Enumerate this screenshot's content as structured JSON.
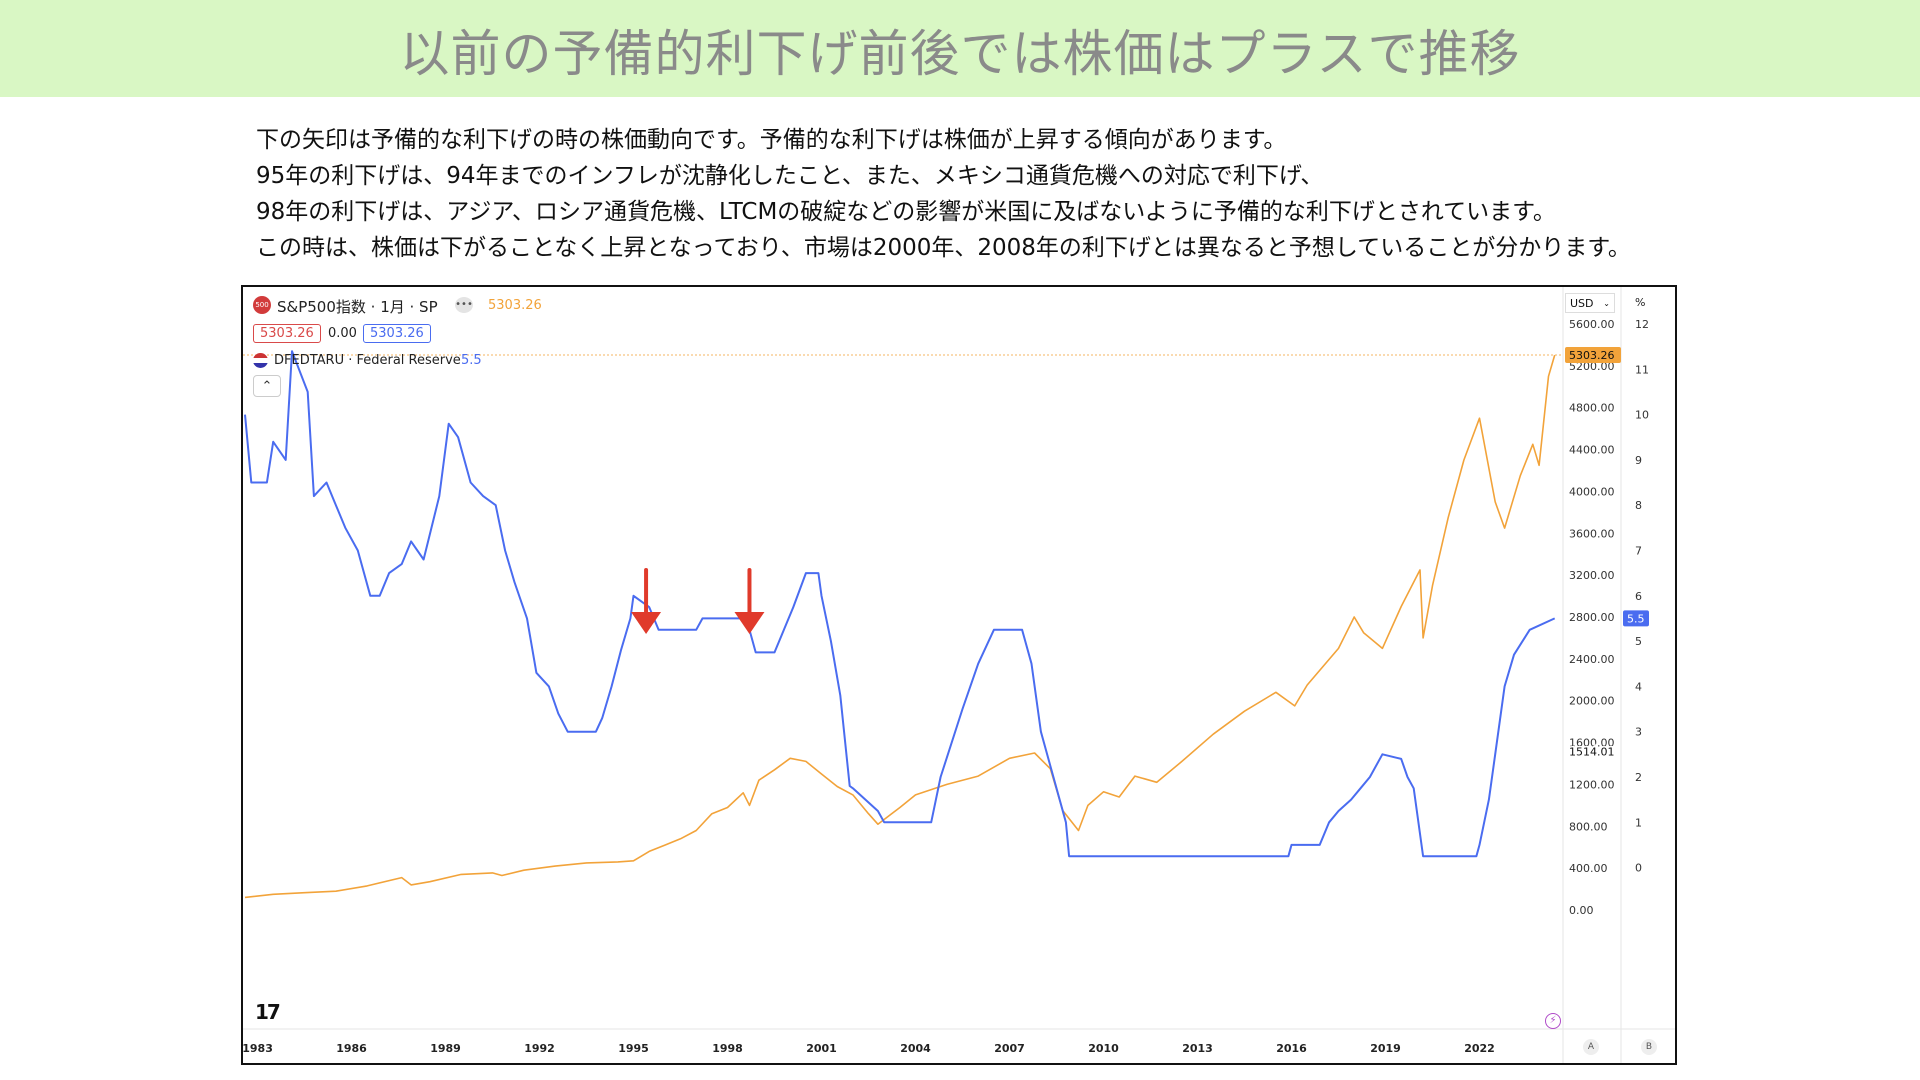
{
  "banner": {
    "title": "以前の予備的利下げ前後では株価はプラスで推移"
  },
  "description": [
    "下の矢印は予備的な利下げの時の株価動向です。予備的な利下げは株価が上昇する傾向があります。",
    "95年の利下げは、94年までのインフレが沈静化したこと、また、メキシコ通貨危機への対応で利下げ、",
    "98年の利下げは、アジア、ロシア通貨危機、LTCMの破綻などの影響が米国に及ばないように予備的な利下げとされています。",
    "この時は、株価は下がることなく上昇となっており、市場は2000年、2008年の利下げとは異なると予想していることが分かります。"
  ],
  "header": {
    "symbol_badge": "500",
    "symbol_title": "S&P500指数 · 1月 · SP",
    "last_value": "5303.26",
    "price_left": "5303.26",
    "change": "0.00",
    "price_right": "5303.26",
    "series2_title": "DFEDTARU · Federal Reserve",
    "series2_value": "5.5",
    "currency": "USD",
    "percent_label": "%",
    "collapse_glyph": "⌃",
    "tv_logo": "17",
    "btn_a": "A",
    "btn_b": "B"
  },
  "colors": {
    "sp500": "#f2a33a",
    "fed": "#4a6cf0",
    "arrow": "#e03a2b",
    "banner": "#d9f7c4"
  },
  "chart_data": {
    "type": "line",
    "title": "S&P500指数 · 1月 · SP",
    "x_ticks": [
      "1983",
      "1986",
      "1989",
      "1992",
      "1995",
      "1998",
      "2001",
      "2004",
      "2007",
      "2010",
      "2013",
      "2016",
      "2019",
      "2022"
    ],
    "left_axis_ticks": [
      "5600.00",
      "5200.00",
      "4800.00",
      "4400.00",
      "4000.00",
      "3600.00",
      "3200.00",
      "2800.00",
      "2400.00",
      "2000.00",
      "1600.00",
      "1200.00",
      "800.00",
      "400.00",
      "0.00"
    ],
    "right_axis_ticks": [
      "12",
      "11",
      "10",
      "9",
      "8",
      "7",
      "6",
      "5",
      "4",
      "3",
      "2",
      "1",
      "0"
    ],
    "xlim": [
      1982.6,
      2024.6
    ],
    "ylim_price": [
      0,
      5600
    ],
    "ylim_rate": [
      0,
      12
    ],
    "price_labels": {
      "last": "5303.26",
      "ref": "1514.01"
    },
    "rate_label": "5.5",
    "arrows_x": [
      1995.4,
      1998.7
    ],
    "series": [
      {
        "name": "S&P500指数 · 1月 · SP",
        "axis": "price",
        "x": [
          1982.6,
          1983.5,
          1984.5,
          1985.5,
          1986.5,
          1987.6,
          1987.9,
          1988.5,
          1989.5,
          1990.5,
          1990.8,
          1991.5,
          1992.5,
          1993.5,
          1994.5,
          1995.0,
          1995.5,
          1996.0,
          1996.5,
          1997.0,
          1997.5,
          1998.0,
          1998.5,
          1998.7,
          1999.0,
          1999.5,
          2000.0,
          2000.5,
          2001.0,
          2001.5,
          2002.0,
          2002.5,
          2002.8,
          2003.5,
          2004.0,
          2005.0,
          2006.0,
          2007.0,
          2007.8,
          2008.3,
          2008.7,
          2009.2,
          2009.5,
          2010.0,
          2010.5,
          2011.0,
          2011.7,
          2012.5,
          2013.5,
          2014.5,
          2015.5,
          2016.1,
          2016.5,
          2017.5,
          2018.0,
          2018.3,
          2018.9,
          2019.5,
          2020.1,
          2020.2,
          2020.5,
          2021.0,
          2021.5,
          2022.0,
          2022.5,
          2022.8,
          2023.3,
          2023.7,
          2023.9,
          2024.2,
          2024.4
        ],
        "y": [
          120,
          150,
          165,
          180,
          230,
          310,
          240,
          270,
          340,
          355,
          330,
          380,
          420,
          450,
          460,
          470,
          560,
          620,
          680,
          760,
          920,
          980,
          1120,
          1000,
          1240,
          1340,
          1450,
          1420,
          1300,
          1180,
          1100,
          920,
          820,
          980,
          1100,
          1200,
          1280,
          1450,
          1500,
          1350,
          950,
          760,
          1000,
          1130,
          1080,
          1280,
          1220,
          1420,
          1680,
          1900,
          2080,
          1950,
          2150,
          2500,
          2800,
          2650,
          2500,
          2900,
          3250,
          2600,
          3100,
          3750,
          4300,
          4700,
          3900,
          3650,
          4150,
          4450,
          4250,
          5100,
          5303
        ]
      },
      {
        "name": "DFEDTARU · Federal Reserve",
        "axis": "rate",
        "x": [
          1982.6,
          1982.8,
          1983.3,
          1983.5,
          1983.9,
          1984.1,
          1984.6,
          1984.8,
          1985.2,
          1985.5,
          1985.8,
          1986.2,
          1986.6,
          1986.9,
          1987.2,
          1987.6,
          1987.9,
          1988.3,
          1988.8,
          1989.1,
          1989.4,
          1989.8,
          1990.2,
          1990.6,
          1990.9,
          1991.2,
          1991.6,
          1991.9,
          1992.3,
          1992.6,
          1992.9,
          1993.0,
          1993.8,
          1994.0,
          1994.3,
          1994.6,
          1994.9,
          1995.0,
          1995.5,
          1995.8,
          1996.0,
          1997.0,
          1997.2,
          1998.0,
          1998.6,
          1998.8,
          1998.9,
          1999.5,
          1999.8,
          2000.1,
          2000.5,
          2000.9,
          2001.0,
          2001.3,
          2001.6,
          2001.9,
          2002.0,
          2002.8,
          2003.0,
          2003.5,
          2004.5,
          2004.8,
          2005.5,
          2006.0,
          2006.5,
          2007.4,
          2007.7,
          2008.0,
          2008.4,
          2008.8,
          2008.9,
          2015.9,
          2016.0,
          2016.9,
          2017.2,
          2017.5,
          2017.9,
          2018.2,
          2018.5,
          2018.9,
          2019.5,
          2019.7,
          2019.9,
          2020.2,
          2021.9,
          2022.0,
          2022.3,
          2022.5,
          2022.8,
          2023.1,
          2023.6,
          2024.4
        ],
        "y": [
          10,
          8.5,
          8.5,
          9.4,
          9,
          11.4,
          10.5,
          8.2,
          8.5,
          8,
          7.5,
          7,
          6,
          6,
          6.5,
          6.7,
          7.2,
          6.8,
          8.2,
          9.8,
          9.5,
          8.5,
          8.2,
          8,
          7,
          6.3,
          5.5,
          4.3,
          4,
          3.4,
          3,
          3,
          3,
          3.3,
          4,
          4.8,
          5.5,
          6,
          5.75,
          5.25,
          5.25,
          5.25,
          5.5,
          5.5,
          5.5,
          5.0,
          4.75,
          4.75,
          5.25,
          5.75,
          6.5,
          6.5,
          6,
          5,
          3.8,
          1.8,
          1.75,
          1.25,
          1,
          1,
          1,
          2,
          3.5,
          4.5,
          5.25,
          5.25,
          4.5,
          3,
          2,
          1,
          0.25,
          0.25,
          0.5,
          0.5,
          1,
          1.25,
          1.5,
          1.75,
          2,
          2.5,
          2.4,
          2.0,
          1.75,
          0.25,
          0.25,
          0.5,
          1.5,
          2.5,
          4.0,
          4.7,
          5.25,
          5.5
        ]
      }
    ]
  }
}
